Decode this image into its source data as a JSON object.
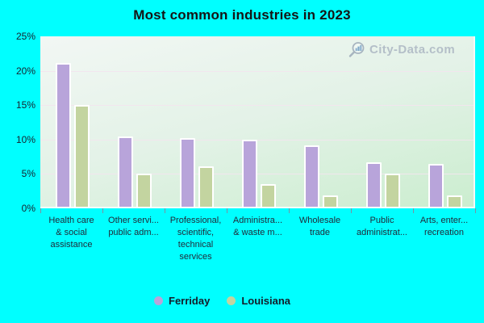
{
  "title": "Most common industries in 2023",
  "watermark": {
    "text": "City-Data.com",
    "icon": "magnifier-bars-icon"
  },
  "colors": {
    "page_background": "#00ffff",
    "ferriday_bar": "#b8a4da",
    "louisiana_bar": "#c3d4a0",
    "bar_border": "#ffffff",
    "plot_gradient_top": "#f2f7f4",
    "plot_gradient_bottom": "#cbedcf",
    "gridline": "#f2e5ee",
    "watermark_text": "#b4bfc8"
  },
  "chart_data": {
    "type": "bar",
    "title": "Most common industries in 2023",
    "categories": [
      "Health care & social assistance",
      "Other servi... public adm...",
      "Professional, scientific, technical services",
      "Administra... & waste m...",
      "Wholesale trade",
      "Public administrat...",
      "Arts, enter... recreation"
    ],
    "category_lines": [
      [
        "Health care",
        "& social",
        "assistance"
      ],
      [
        "Other servi...",
        "public adm..."
      ],
      [
        "Professional,",
        "scientific,",
        "technical",
        "services"
      ],
      [
        "Administra...",
        "& waste m..."
      ],
      [
        "Wholesale",
        "trade"
      ],
      [
        "Public",
        "administrat..."
      ],
      [
        "Arts, enter...",
        "recreation"
      ]
    ],
    "series": [
      {
        "name": "Ferriday",
        "color": "#b8a4da",
        "values": [
          21.1,
          10.5,
          10.2,
          10.0,
          9.1,
          6.7,
          6.5
        ]
      },
      {
        "name": "Louisiana",
        "color": "#c3d4a0",
        "values": [
          15.0,
          5.1,
          6.1,
          3.5,
          1.9,
          5.1,
          1.9
        ]
      }
    ],
    "xlabel": "",
    "ylabel": "",
    "ytick_labels": [
      "0%",
      "5%",
      "10%",
      "15%",
      "20%",
      "25%"
    ],
    "ylim": [
      0,
      25
    ],
    "grid": true,
    "legend_position": "bottom"
  },
  "legend": {
    "items": [
      {
        "label": "Ferriday",
        "color": "#b8a4da"
      },
      {
        "label": "Louisiana",
        "color": "#c3d4a0"
      }
    ]
  }
}
